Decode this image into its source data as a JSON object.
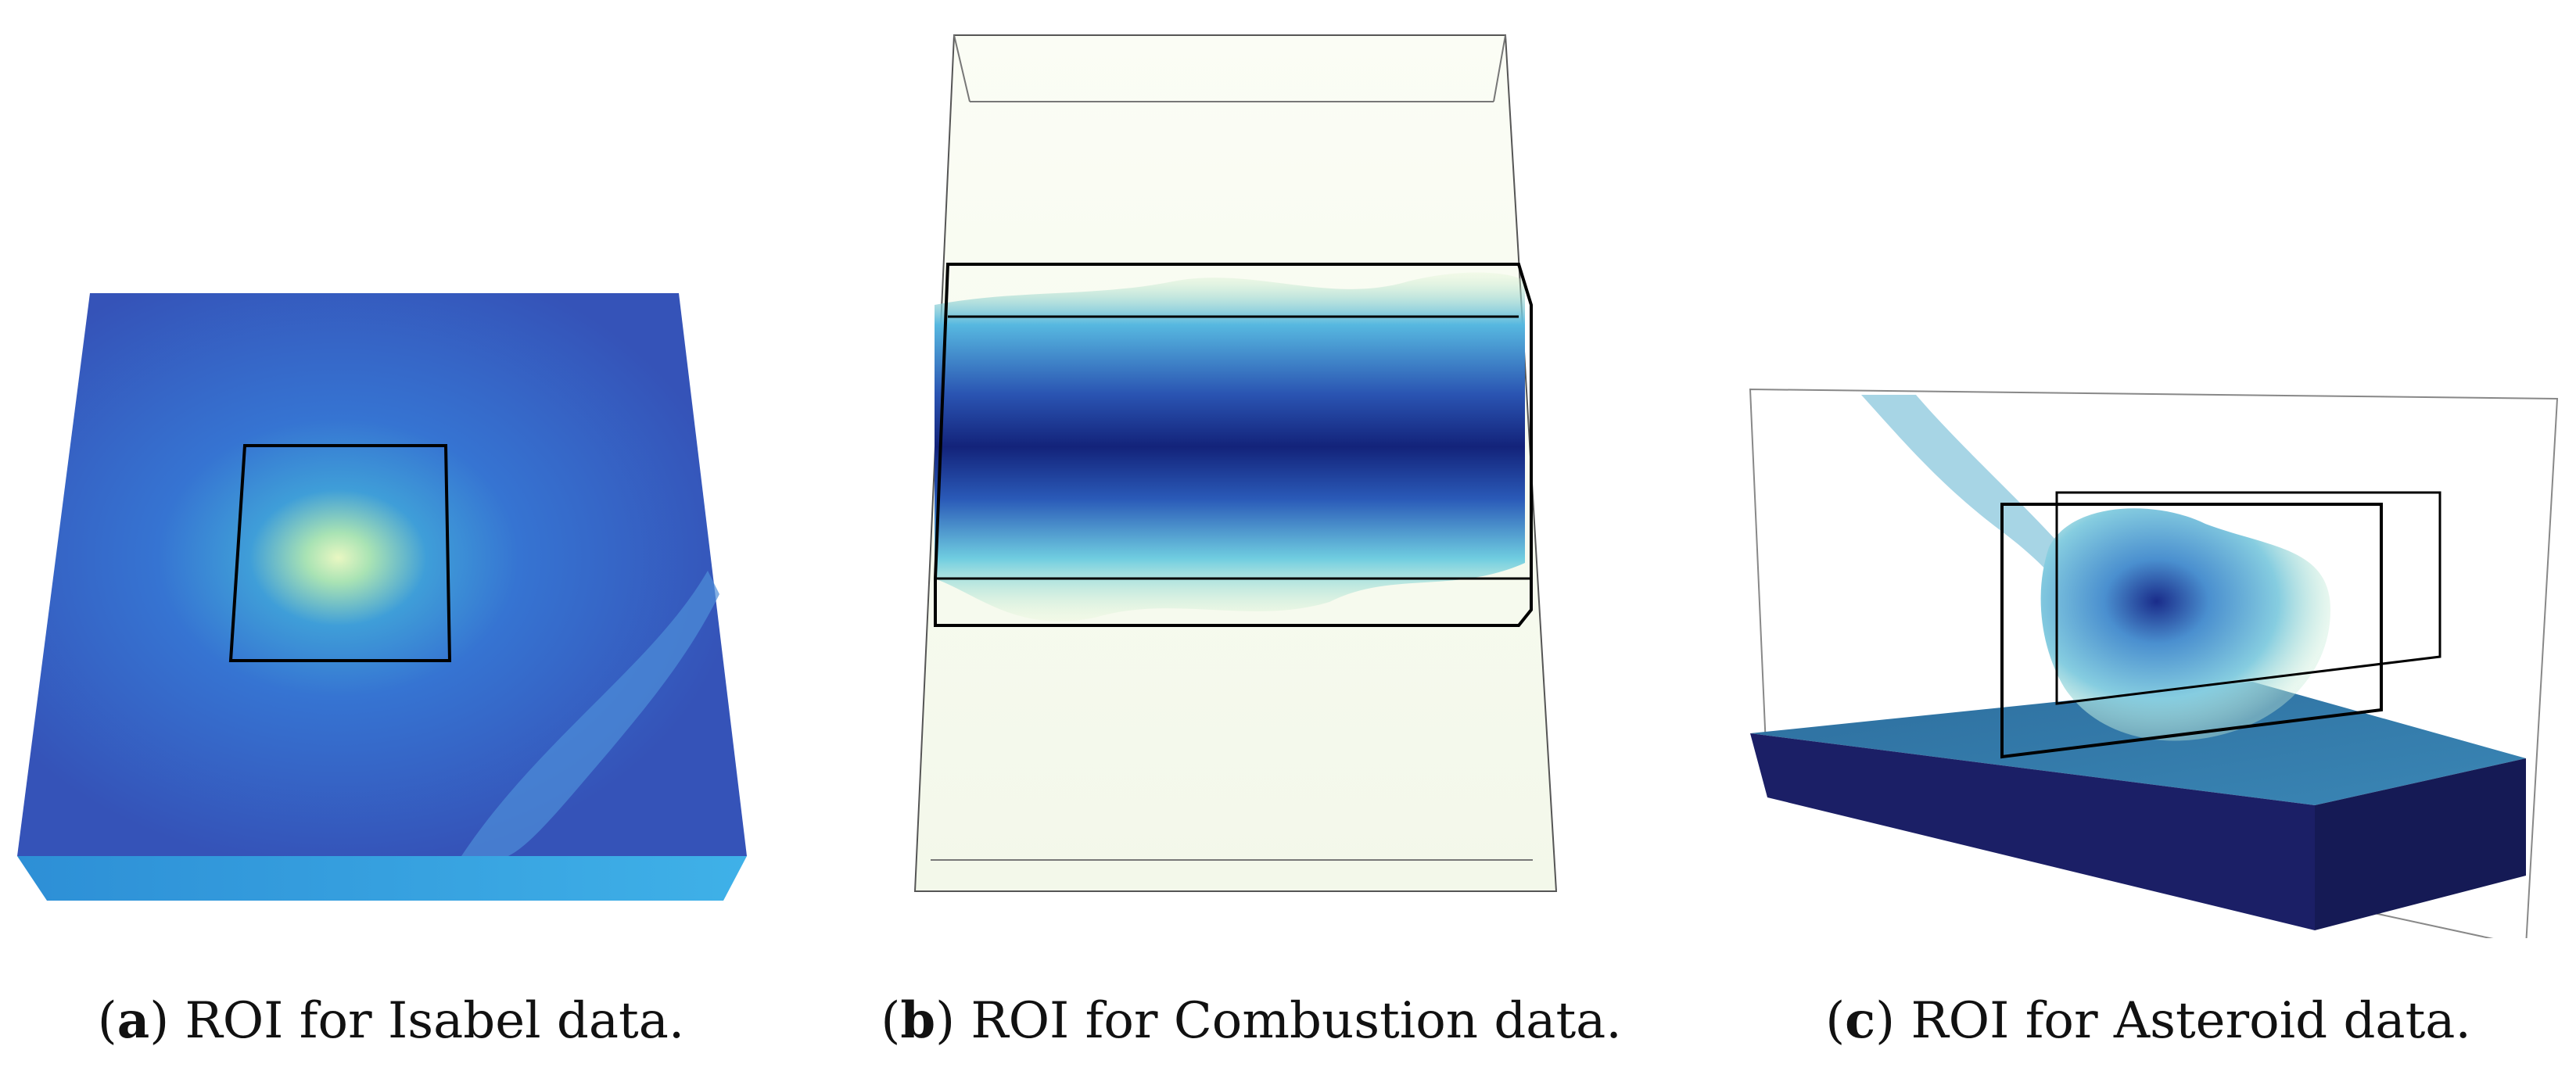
{
  "figures": [
    {
      "letter": "a",
      "caption": "ROI for Isabel data."
    },
    {
      "letter": "b",
      "caption": "ROI for Combustion data."
    },
    {
      "letter": "c",
      "caption": "ROI for Asteroid data."
    }
  ],
  "colors": {
    "isabel_blue": "#3566cc",
    "isabel_core": "#e8f5c0",
    "combustion_dark": "#13237a",
    "combustion_light": "#c9efb8",
    "asteroid_base": "#1b1f66",
    "asteroid_top": "#2f6fa0",
    "outline": "#000000"
  }
}
